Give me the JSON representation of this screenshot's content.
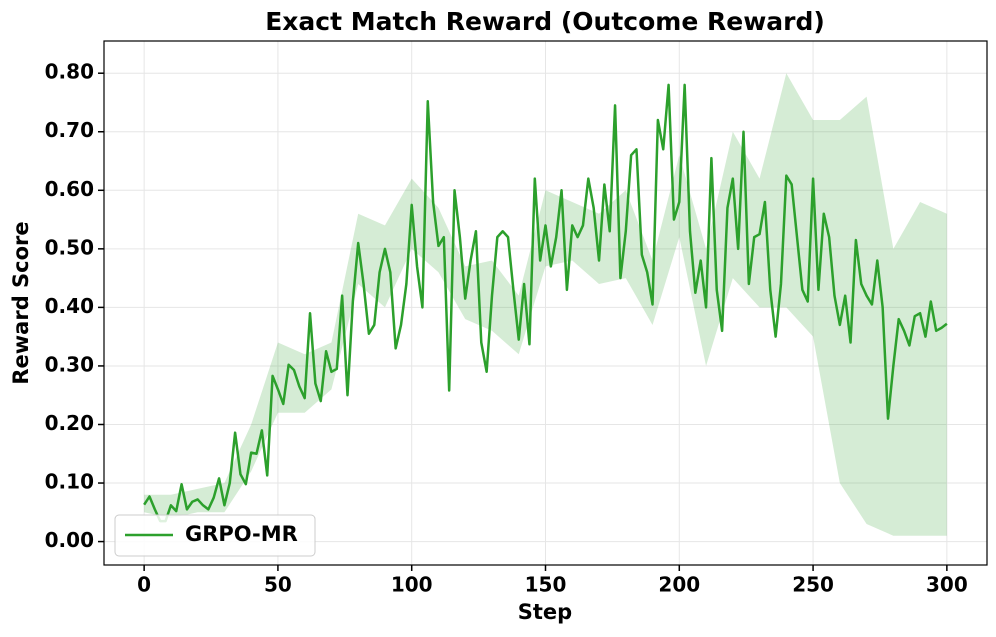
{
  "chart_data": {
    "type": "line",
    "title": "Exact Match Reward (Outcome Reward)",
    "x_label": "Step",
    "y_label": "Reward Score",
    "xlim": [
      -15,
      315
    ],
    "ylim": [
      -0.04,
      0.855
    ],
    "xticks": [
      0,
      50,
      100,
      150,
      200,
      250,
      300
    ],
    "yticks": [
      {
        "value": 0,
        "label": "0.00"
      },
      {
        "value": 0.1,
        "label": "0.10"
      },
      {
        "value": 0.2,
        "label": "0.20"
      },
      {
        "value": 0.3,
        "label": "0.30"
      },
      {
        "value": 0.4,
        "label": "0.40"
      },
      {
        "value": 0.5,
        "label": "0.50"
      },
      {
        "value": 0.6,
        "label": "0.60"
      },
      {
        "value": 0.7,
        "label": "0.70"
      },
      {
        "value": 0.8,
        "label": "0.80"
      }
    ],
    "grid": true,
    "legend": "lower left",
    "series": [
      {
        "name": "GRPO-MR",
        "color": "#2ca02c",
        "x": [
          0,
          2,
          4,
          6,
          8,
          10,
          12,
          14,
          16,
          18,
          20,
          22,
          24,
          26,
          28,
          30,
          32,
          34,
          36,
          38,
          40,
          42,
          44,
          46,
          48,
          50,
          52,
          54,
          56,
          58,
          60,
          62,
          64,
          66,
          68,
          70,
          72,
          74,
          76,
          78,
          80,
          82,
          84,
          86,
          88,
          90,
          92,
          94,
          96,
          98,
          100,
          102,
          104,
          106,
          108,
          110,
          112,
          114,
          116,
          118,
          120,
          122,
          124,
          126,
          128,
          130,
          132,
          134,
          136,
          138,
          140,
          142,
          144,
          146,
          148,
          150,
          152,
          154,
          156,
          158,
          160,
          162,
          164,
          166,
          168,
          170,
          172,
          174,
          176,
          178,
          180,
          182,
          184,
          186,
          188,
          190,
          192,
          194,
          196,
          198,
          200,
          202,
          204,
          206,
          208,
          210,
          212,
          214,
          216,
          218,
          220,
          222,
          224,
          226,
          228,
          230,
          232,
          234,
          236,
          238,
          240,
          242,
          244,
          246,
          248,
          250,
          252,
          254,
          256,
          258,
          260,
          262,
          264,
          266,
          268,
          270,
          272,
          274,
          276,
          278,
          280,
          282,
          284,
          286,
          288,
          290,
          292,
          294,
          296,
          298,
          300
        ],
        "values": [
          0.063,
          0.077,
          0.055,
          0.035,
          0.035,
          0.062,
          0.052,
          0.098,
          0.055,
          0.068,
          0.072,
          0.062,
          0.055,
          0.075,
          0.108,
          0.062,
          0.1,
          0.186,
          0.115,
          0.098,
          0.152,
          0.15,
          0.19,
          0.113,
          0.283,
          0.26,
          0.235,
          0.302,
          0.293,
          0.265,
          0.245,
          0.39,
          0.27,
          0.24,
          0.325,
          0.29,
          0.295,
          0.42,
          0.25,
          0.41,
          0.51,
          0.44,
          0.355,
          0.37,
          0.46,
          0.5,
          0.46,
          0.33,
          0.37,
          0.44,
          0.575,
          0.47,
          0.4,
          0.752,
          0.58,
          0.505,
          0.52,
          0.258,
          0.6,
          0.52,
          0.415,
          0.48,
          0.53,
          0.34,
          0.29,
          0.42,
          0.52,
          0.53,
          0.52,
          0.43,
          0.345,
          0.44,
          0.337,
          0.62,
          0.48,
          0.54,
          0.47,
          0.52,
          0.6,
          0.43,
          0.54,
          0.52,
          0.54,
          0.62,
          0.57,
          0.48,
          0.61,
          0.53,
          0.745,
          0.45,
          0.53,
          0.66,
          0.67,
          0.49,
          0.46,
          0.405,
          0.72,
          0.67,
          0.78,
          0.55,
          0.58,
          0.78,
          0.53,
          0.425,
          0.48,
          0.4,
          0.655,
          0.43,
          0.36,
          0.57,
          0.62,
          0.5,
          0.7,
          0.44,
          0.52,
          0.525,
          0.58,
          0.43,
          0.35,
          0.44,
          0.625,
          0.61,
          0.52,
          0.43,
          0.41,
          0.62,
          0.43,
          0.56,
          0.52,
          0.42,
          0.37,
          0.42,
          0.34,
          0.515,
          0.44,
          0.42,
          0.405,
          0.48,
          0.4,
          0.21,
          0.3,
          0.38,
          0.36,
          0.335,
          0.385,
          0.39,
          0.35,
          0.41,
          0.36,
          0.365,
          0.372
        ]
      }
    ],
    "band": {
      "color": "#2ca02c",
      "x": [
        0,
        10,
        20,
        30,
        40,
        50,
        60,
        70,
        80,
        90,
        100,
        110,
        120,
        130,
        140,
        150,
        160,
        170,
        180,
        190,
        200,
        210,
        220,
        230,
        240,
        250,
        260,
        270,
        280,
        290,
        300
      ],
      "lower": [
        0.05,
        0.04,
        0.05,
        0.05,
        0.12,
        0.22,
        0.22,
        0.26,
        0.44,
        0.4,
        0.5,
        0.46,
        0.38,
        0.36,
        0.32,
        0.47,
        0.48,
        0.44,
        0.45,
        0.37,
        0.52,
        0.3,
        0.45,
        0.4,
        0.4,
        0.35,
        0.1,
        0.03,
        0.01,
        0.01,
        0.01
      ],
      "upper": [
        0.08,
        0.08,
        0.09,
        0.1,
        0.2,
        0.34,
        0.32,
        0.34,
        0.56,
        0.54,
        0.62,
        0.57,
        0.47,
        0.48,
        0.42,
        0.6,
        0.58,
        0.56,
        0.6,
        0.48,
        0.66,
        0.5,
        0.7,
        0.62,
        0.8,
        0.72,
        0.72,
        0.76,
        0.5,
        0.58,
        0.56
      ]
    }
  }
}
